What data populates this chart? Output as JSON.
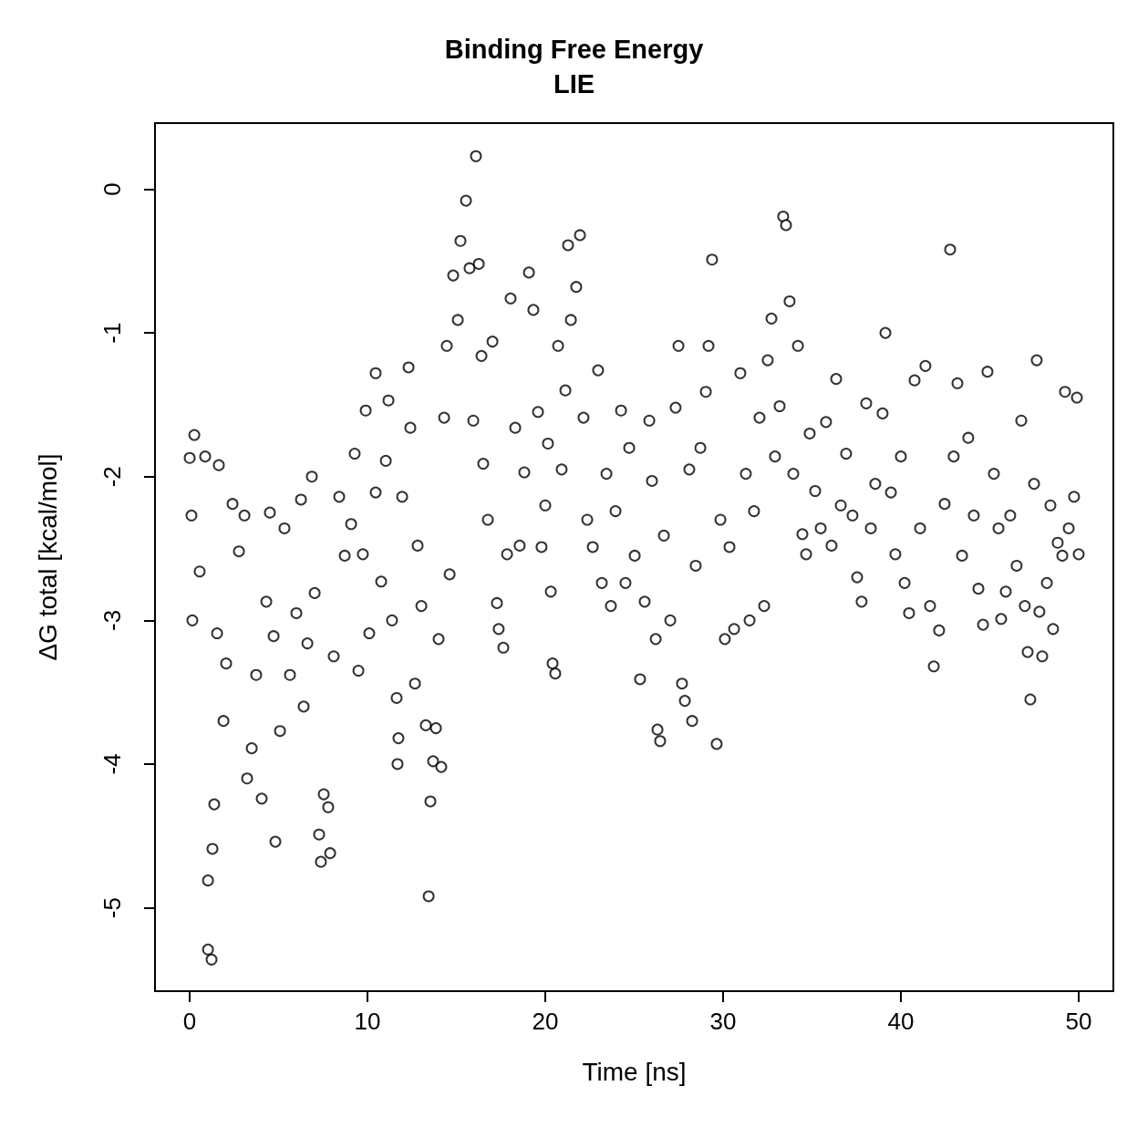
{
  "chart_data": {
    "type": "scatter",
    "title": "Binding Free Energy\nLIE",
    "xlabel": "Time [ns]",
    "ylabel": "ΔG total [kcal/mol]",
    "xlim": [
      -1.95,
      51.95
    ],
    "ylim": [
      -5.58,
      0.46
    ],
    "xticks": [
      0,
      10,
      20,
      30,
      40,
      50
    ],
    "yticks": [
      -5,
      -4,
      -3,
      -2,
      -1,
      0
    ],
    "grid": false,
    "marker": "circle",
    "series": [
      {
        "color": "#000000",
        "x": [
          0,
          0.26,
          0.1,
          0.15,
          0.56,
          0.87,
          1.03,
          1.23,
          1.03,
          1.28,
          1.38,
          1.64,
          1.54,
          1.9,
          2.05,
          2.41,
          2.77,
          3.08,
          3.23,
          3.49,
          3.74,
          4.05,
          4.31,
          4.51,
          4.82,
          4.72,
          5.08,
          5.33,
          5.64,
          6.0,
          6.26,
          6.41,
          6.62,
          6.87,
          7.03,
          7.28,
          7.38,
          7.54,
          7.79,
          7.9,
          8.1,
          8.41,
          8.72,
          9.08,
          9.28,
          9.49,
          9.74,
          9.9,
          10.1,
          10.46,
          10.46,
          10.77,
          11.03,
          11.18,
          11.38,
          11.64,
          11.74,
          11.69,
          11.95,
          12.31,
          12.41,
          12.67,
          12.82,
          13.03,
          13.28,
          13.44,
          13.54,
          13.69,
          13.85,
          14.0,
          14.15,
          14.31,
          14.46,
          14.62,
          14.82,
          15.08,
          15.23,
          15.54,
          15.74,
          15.95,
          16.1,
          16.26,
          16.41,
          16.51,
          16.77,
          17.03,
          17.28,
          17.38,
          17.64,
          17.85,
          18.05,
          18.31,
          18.56,
          18.82,
          19.08,
          19.33,
          19.59,
          19.79,
          20.0,
          20.15,
          20.31,
          20.41,
          20.56,
          20.72,
          20.92,
          21.13,
          21.28,
          21.44,
          21.74,
          21.95,
          22.15,
          22.36,
          22.67,
          22.97,
          23.18,
          23.44,
          23.69,
          23.95,
          24.26,
          24.51,
          24.72,
          25.03,
          25.33,
          25.59,
          25.85,
          26.0,
          26.21,
          26.31,
          26.46,
          26.67,
          27.03,
          27.33,
          27.49,
          27.69,
          27.85,
          28.1,
          28.26,
          28.46,
          28.72,
          29.03,
          29.18,
          29.38,
          29.64,
          29.85,
          30.1,
          30.36,
          30.62,
          30.97,
          31.28,
          31.49,
          31.74,
          32.05,
          32.31,
          32.51,
          32.72,
          32.92,
          33.18,
          33.38,
          33.54,
          33.74,
          33.95,
          34.21,
          34.46,
          34.67,
          34.87,
          35.18,
          35.49,
          35.79,
          36.1,
          36.36,
          36.62,
          36.92,
          37.28,
          37.54,
          37.79,
          38.05,
          38.31,
          38.56,
          38.97,
          39.13,
          39.44,
          39.69,
          40.0,
          40.21,
          40.46,
          40.77,
          41.08,
          41.38,
          41.64,
          41.85,
          42.15,
          42.46,
          42.77,
          42.97,
          43.18,
          43.44,
          43.79,
          44.1,
          44.36,
          44.62,
          44.87,
          45.23,
          45.49,
          45.64,
          45.9,
          46.15,
          46.51,
          46.77,
          46.97,
          47.13,
          47.28,
          47.49,
          47.64,
          47.79,
          47.95,
          48.21,
          48.41,
          48.56,
          48.82,
          49.08,
          49.23,
          49.44,
          49.74,
          49.9,
          50.0
        ],
        "values": [
          -1.87,
          -1.71,
          -2.27,
          -3.0,
          -2.66,
          -1.86,
          -5.29,
          -5.36,
          -4.81,
          -4.59,
          -4.28,
          -1.92,
          -3.09,
          -3.7,
          -3.3,
          -2.19,
          -2.52,
          -2.27,
          -4.1,
          -3.89,
          -3.38,
          -4.24,
          -2.87,
          -2.25,
          -4.54,
          -3.11,
          -3.77,
          -2.36,
          -3.38,
          -2.95,
          -2.16,
          -3.6,
          -3.16,
          -2.0,
          -2.81,
          -4.49,
          -4.68,
          -4.21,
          -4.3,
          -4.62,
          -3.25,
          -2.14,
          -2.55,
          -2.33,
          -1.84,
          -3.35,
          -2.54,
          -1.54,
          -3.09,
          -1.28,
          -2.11,
          -2.73,
          -1.89,
          -1.47,
          -3.0,
          -3.54,
          -3.82,
          -4.0,
          -2.14,
          -1.24,
          -1.66,
          -3.44,
          -2.48,
          -2.9,
          -3.73,
          -4.92,
          -4.26,
          -3.98,
          -3.75,
          -3.13,
          -4.02,
          -1.59,
          -1.09,
          -2.68,
          -0.6,
          -0.91,
          -0.36,
          -0.08,
          -0.55,
          -1.61,
          0.23,
          -0.52,
          -1.16,
          -1.91,
          -2.3,
          -1.06,
          -2.88,
          -3.06,
          -3.19,
          -2.54,
          -0.76,
          -1.66,
          -2.48,
          -1.97,
          -0.58,
          -0.84,
          -1.55,
          -2.49,
          -2.2,
          -1.77,
          -2.8,
          -3.3,
          -3.37,
          -1.09,
          -1.95,
          -1.4,
          -0.39,
          -0.91,
          -0.68,
          -0.32,
          -1.59,
          -2.3,
          -2.49,
          -1.26,
          -2.74,
          -1.98,
          -2.9,
          -2.24,
          -1.54,
          -2.74,
          -1.8,
          -2.55,
          -3.41,
          -2.87,
          -1.61,
          -2.03,
          -3.13,
          -3.76,
          -3.84,
          -2.41,
          -3.0,
          -1.52,
          -1.09,
          -3.44,
          -3.56,
          -1.95,
          -3.7,
          -2.62,
          -1.8,
          -1.41,
          -1.09,
          -0.49,
          -3.86,
          -2.3,
          -3.13,
          -2.49,
          -3.06,
          -1.28,
          -1.98,
          -3.0,
          -2.24,
          -1.59,
          -2.9,
          -1.19,
          -0.9,
          -1.86,
          -1.51,
          -0.19,
          -0.25,
          -0.78,
          -1.98,
          -1.09,
          -2.4,
          -2.54,
          -1.7,
          -2.1,
          -2.36,
          -1.62,
          -2.48,
          -1.32,
          -2.2,
          -1.84,
          -2.27,
          -2.7,
          -2.87,
          -1.49,
          -2.36,
          -2.05,
          -1.56,
          -1.0,
          -2.11,
          -2.54,
          -1.86,
          -2.74,
          -2.95,
          -1.33,
          -2.36,
          -1.23,
          -2.9,
          -3.32,
          -3.07,
          -2.19,
          -0.42,
          -1.86,
          -1.35,
          -2.55,
          -1.73,
          -2.27,
          -2.78,
          -3.03,
          -1.27,
          -1.98,
          -2.36,
          -2.99,
          -2.8,
          -2.27,
          -2.62,
          -1.61,
          -2.9,
          -3.22,
          -3.55,
          -2.05,
          -1.19,
          -2.94,
          -3.25,
          -2.74,
          -2.2,
          -3.06,
          -2.46,
          -2.55,
          -1.41,
          -2.36,
          -2.14,
          -1.45,
          -2.54
        ]
      }
    ]
  }
}
